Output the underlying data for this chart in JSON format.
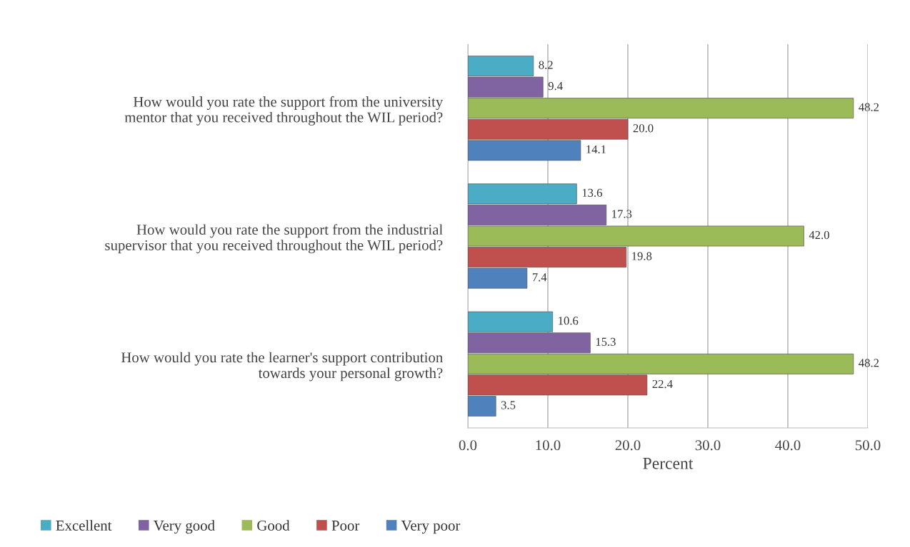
{
  "chart_data": {
    "type": "bar",
    "orientation": "horizontal",
    "xlabel": "Percent",
    "categories": [
      "How would you rate the support from the university mentor that you received throughout the WIL period?",
      "How would you rate the support from the industrial supervisor that you received throughout the WIL period?",
      "How would you rate the learner's support contribution towards your personal growth?"
    ],
    "series": [
      {
        "name": "Excellent",
        "color": "#4bacc6",
        "values": [
          8.2,
          13.6,
          10.6
        ],
        "value_labels": [
          "8.2",
          "13.6",
          "10.6"
        ]
      },
      {
        "name": "Very good",
        "color": "#8064a2",
        "values": [
          9.4,
          17.3,
          15.3
        ],
        "value_labels": [
          "9.4",
          "17.3",
          "15.3"
        ]
      },
      {
        "name": "Good",
        "color": "#9bbb59",
        "values": [
          48.2,
          42,
          48.2
        ],
        "value_labels": [
          "48.2",
          "42.0",
          "48.2"
        ]
      },
      {
        "name": "Poor",
        "color": "#c0504d",
        "values": [
          20,
          19.8,
          22.4
        ],
        "value_labels": [
          "20.0",
          "19.8",
          "22.4"
        ]
      },
      {
        "name": "Very poor",
        "color": "#4f81bd",
        "values": [
          14.1,
          7.4,
          3.5
        ],
        "value_labels": [
          "14.1",
          "7.4",
          "3.5"
        ]
      }
    ],
    "xlim": [
      0,
      50
    ],
    "xticks": [
      {
        "value": 0,
        "label": "0.0"
      },
      {
        "value": 10,
        "label": "10.0"
      },
      {
        "value": 20,
        "label": "20.0"
      },
      {
        "value": 30,
        "label": "30.0"
      },
      {
        "value": 40,
        "label": "40.0"
      },
      {
        "value": 50,
        "label": "50.0"
      }
    ],
    "grid": "x",
    "legend": "bottom"
  }
}
